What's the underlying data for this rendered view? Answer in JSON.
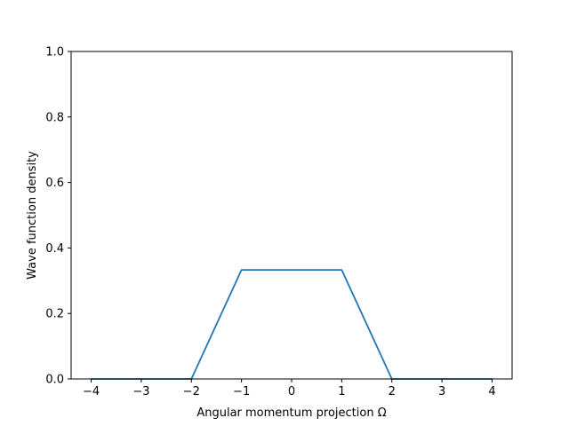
{
  "chart_data": {
    "type": "line",
    "title": "",
    "xlabel": "Angular momentum projection Ω",
    "ylabel": "Wave function density",
    "xlim": [
      -4.4,
      4.4
    ],
    "ylim": [
      0.0,
      1.0
    ],
    "x_ticks": [
      -4,
      -3,
      -2,
      -1,
      0,
      1,
      2,
      3,
      4
    ],
    "x_tick_labels": [
      "−4",
      "−3",
      "−2",
      "−1",
      "0",
      "1",
      "2",
      "3",
      "4"
    ],
    "y_ticks": [
      0.0,
      0.2,
      0.4,
      0.6,
      0.8,
      1.0
    ],
    "y_tick_labels": [
      "0.0",
      "0.2",
      "0.4",
      "0.6",
      "0.8",
      "1.0"
    ],
    "grid": false,
    "series": [
      {
        "x": [
          -4,
          -3,
          -2,
          -1,
          0,
          1,
          2,
          3,
          4
        ],
        "y": [
          0,
          0,
          0,
          0.333,
          0.333,
          0.333,
          0,
          0,
          0
        ],
        "color": "#1f77b4"
      }
    ]
  }
}
